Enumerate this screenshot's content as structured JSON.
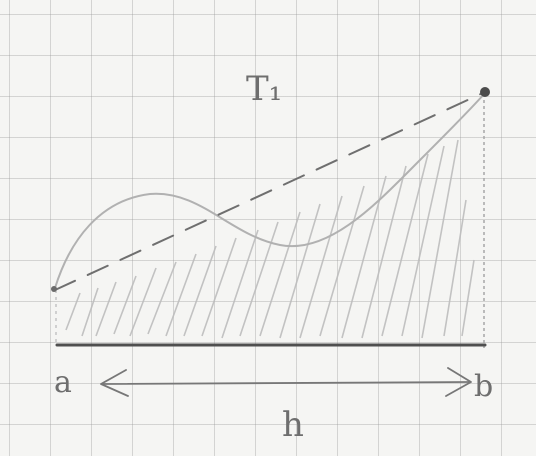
{
  "labels": {
    "title": "T₁",
    "a": "a",
    "b": "b",
    "h": "h"
  },
  "colors": {
    "pencil": "#6f6f6f",
    "pencil_light": "#b4b4b4",
    "grid": "#b5b5b5",
    "paper": "#f5f5f3"
  },
  "legend": null
}
